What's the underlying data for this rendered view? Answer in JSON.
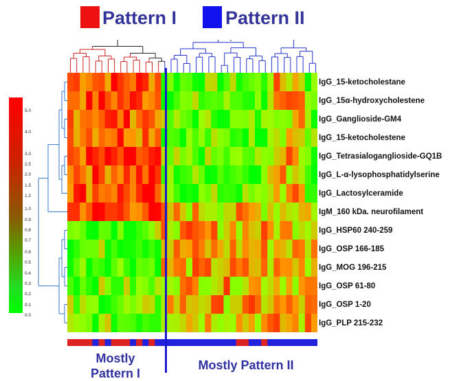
{
  "legend": {
    "items": [
      {
        "label": "Pattern I",
        "color": "#ee1111",
        "text_color": "#333399"
      },
      {
        "label": "Pattern II",
        "color": "#1111ee",
        "text_color": "#333399"
      }
    ]
  },
  "chart_data": {
    "type": "heatmap",
    "rows": [
      "IgG_15-ketocholestane",
      "IgG_15α-hydroxycholestene",
      "IgG_Ganglioside-GM4",
      "IgG_15-ketocholestene",
      "IgG_Tetrasialoganglioside-GQ1B",
      "IgG_L-α-lysophosphatidylserine",
      "IgG_Lactosylceramide",
      "IgM_160 kDa. neurofilament",
      "IgG_HSP60 240-259",
      "IgG_OSP 166-185",
      "IgG_MOG 196-215",
      "IgG_OSP 61-80",
      "IgG_OSP 1-20",
      "IgG_PLP 215-232"
    ],
    "columns_count": 40,
    "split_after_column": 15,
    "color_key": {
      "ticks": [
        "5.0",
        "4.0",
        "3.0",
        "2.5",
        "2.0",
        "1.5",
        "1.2",
        "1.0",
        "0.9",
        "0.8",
        "0.7",
        "0.6",
        "0.5",
        "0.4",
        "0.3",
        "0.2",
        "0.1",
        "0.0"
      ],
      "high_color": "#ff0000",
      "low_color": "#00ff00"
    },
    "pattern_bar": [
      "I",
      "I",
      "I",
      "I",
      "II",
      "I",
      "II",
      "I",
      "I",
      "I",
      "II",
      "I",
      "II",
      "I",
      "II",
      "II",
      "II",
      "II",
      "II",
      "II",
      "II",
      "II",
      "II",
      "II",
      "II",
      "II",
      "II",
      "I",
      "I",
      "II",
      "II",
      "I",
      "II",
      "II",
      "II",
      "II",
      "II",
      "II",
      "II",
      "II"
    ],
    "bottom_labels": {
      "left": "Mostly Pattern I",
      "right": "Mostly Pattern II"
    },
    "colors": {
      "pattern_i": "#dd2222",
      "pattern_ii": "#2222dd",
      "split_line": "#1a1acc",
      "dendro_red": "#cc2222",
      "dendro_blue": "#2233cc",
      "row_dendro": "#3377cc"
    }
  }
}
